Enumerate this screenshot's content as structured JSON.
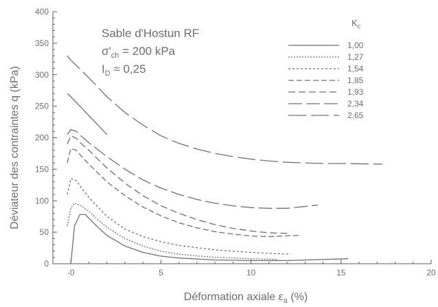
{
  "chart_data": {
    "type": "line",
    "xlabel": "Déformation axiale ε",
    "xlabel_sub": "a",
    "xlabel_unit": " (%)",
    "ylabel": "Déviateur des contraintes q (kPa)",
    "xlim": [
      -1,
      20
    ],
    "ylim": [
      0,
      400
    ],
    "xticks": [
      0,
      5,
      10,
      15,
      20
    ],
    "xtick_labels": [
      "-0",
      "5",
      "10",
      "15",
      "20"
    ],
    "yticks": [
      0,
      50,
      100,
      150,
      200,
      250,
      300,
      350,
      400
    ],
    "annotations": {
      "line1": "Sable d'Hostun RF",
      "line2_main": "σ'",
      "line2_sub": "ch",
      "line2_rest": " = 200 kPa",
      "line3_main": "I",
      "line3_sub": "D",
      "line3_rest": " ≈ 0,25"
    },
    "legend": {
      "title_main": "K",
      "title_sub": "c",
      "placement": "top-right"
    },
    "series": [
      {
        "name": "1,00",
        "dash": "",
        "x": [
          0,
          0.2,
          0.5,
          0.8,
          1,
          1.5,
          2,
          3,
          4,
          5,
          6,
          8,
          10,
          12,
          15.4
        ],
        "y": [
          0,
          60,
          78,
          78,
          72,
          58,
          45,
          28,
          18,
          12,
          9,
          6,
          5,
          5,
          8
        ]
      },
      {
        "name": "1,27",
        "dash": "2,2",
        "x": [
          -0.2,
          0,
          0.2,
          0.5,
          1,
          1.5,
          2,
          3,
          4,
          5,
          6,
          8,
          10,
          11.5
        ],
        "y": [
          60,
          88,
          96,
          93,
          83,
          70,
          58,
          40,
          28,
          20,
          15,
          10,
          8,
          7
        ]
      },
      {
        "name": "1,54",
        "dash": "3,3",
        "x": [
          -0.2,
          0,
          0.3,
          0.6,
          1,
          2,
          3,
          4,
          5,
          6,
          8,
          10,
          12.2
        ],
        "y": [
          110,
          135,
          132,
          120,
          105,
          75,
          55,
          43,
          35,
          29,
          22,
          18,
          15
        ]
      },
      {
        "name": "1,85",
        "dash": "8,4",
        "x": [
          -0.2,
          0,
          0.3,
          0.6,
          1,
          2,
          3,
          4,
          5,
          6,
          7,
          8,
          9,
          10,
          11,
          12.7
        ],
        "y": [
          160,
          183,
          180,
          170,
          158,
          130,
          108,
          90,
          76,
          65,
          57,
          51,
          47,
          44,
          43,
          45
        ]
      },
      {
        "name": "1,93",
        "dash": "10,5",
        "x": [
          -0.2,
          0,
          0.3,
          0.6,
          1,
          2,
          3,
          4,
          5,
          6,
          7,
          8,
          9,
          10,
          11,
          12.2
        ],
        "y": [
          190,
          203,
          199,
          190,
          180,
          152,
          128,
          108,
          92,
          80,
          70,
          62,
          56,
          52,
          49,
          48
        ]
      },
      {
        "name": "2,34",
        "dash": "20,6",
        "x": [
          -0.2,
          0,
          0.3,
          0.6,
          1,
          2,
          3,
          4,
          5,
          6,
          7,
          8,
          9,
          10,
          11,
          12,
          13.7
        ],
        "y": [
          205,
          213,
          210,
          202,
          192,
          170,
          150,
          133,
          120,
          110,
          102,
          96,
          92,
          89,
          88,
          88,
          93
        ]
      },
      {
        "name": "2,65",
        "dash": "26,7",
        "x": [
          -0.2,
          0,
          1,
          2,
          3,
          4,
          5,
          6,
          7,
          8,
          9,
          10,
          11,
          12,
          13,
          14,
          15,
          17.3
        ],
        "y": [
          330,
          323,
          295,
          265,
          240,
          220,
          203,
          191,
          182,
          175,
          170,
          166,
          163,
          161,
          160,
          159,
          159,
          158
        ]
      },
      {
        "name": "",
        "dash": "",
        "x": [
          -0.2,
          0,
          0.5,
          1,
          1.5,
          2
        ],
        "y": [
          270,
          265,
          250,
          235,
          220,
          205
        ]
      }
    ]
  }
}
